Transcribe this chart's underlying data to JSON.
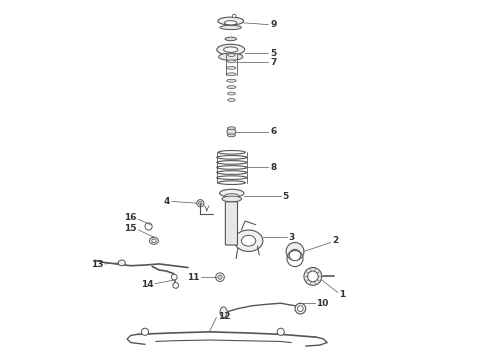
{
  "title": "",
  "background_color": "#ffffff",
  "line_color": "#555555",
  "label_color": "#333333",
  "fig_width": 4.9,
  "fig_height": 3.6,
  "dpi": 100
}
